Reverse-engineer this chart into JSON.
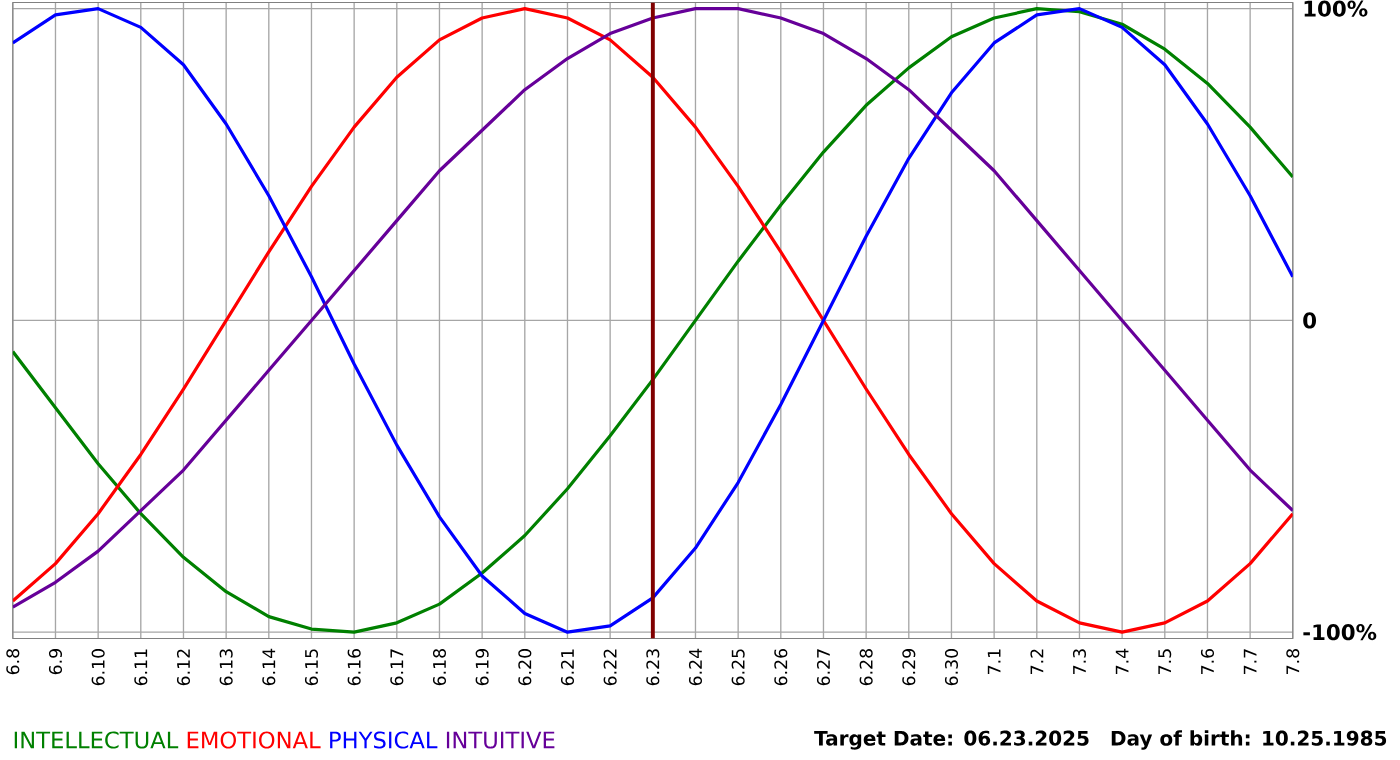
{
  "chart_data": {
    "type": "line",
    "categories": [
      "6.8",
      "6.9",
      "6.10",
      "6.11",
      "6.12",
      "6.13",
      "6.14",
      "6.15",
      "6.16",
      "6.17",
      "6.18",
      "6.19",
      "6.20",
      "6.21",
      "6.22",
      "6.23",
      "6.24",
      "6.25",
      "6.26",
      "6.27",
      "6.28",
      "6.29",
      "6.30",
      "7.1",
      "7.2",
      "7.3",
      "7.4",
      "7.5",
      "7.6",
      "7.7",
      "7.8"
    ],
    "series": [
      {
        "name": "INTELLECTUAL",
        "color": "#008000",
        "values": [
          -10,
          -28,
          -46,
          -62,
          -76,
          -87,
          -95,
          -99,
          -100,
          -97,
          -91,
          -81,
          -69,
          -54,
          -37,
          -19,
          0,
          19,
          37,
          54,
          69,
          81,
          91,
          97,
          100,
          99,
          95,
          87,
          76,
          62,
          46
        ]
      },
      {
        "name": "EMOTIONAL",
        "color": "#ff0000",
        "values": [
          -90,
          -78,
          -62,
          -43,
          -22,
          0,
          22,
          43,
          62,
          78,
          90,
          97,
          100,
          97,
          90,
          78,
          62,
          43,
          22,
          0,
          -22,
          -43,
          -62,
          -78,
          -90,
          -97,
          -100,
          -97,
          -90,
          -78,
          -62
        ]
      },
      {
        "name": "PHYSICAL",
        "color": "#0000ff",
        "values": [
          89,
          98,
          100,
          94,
          82,
          63,
          40,
          14,
          -14,
          -40,
          -63,
          -82,
          -94,
          -100,
          -98,
          -89,
          -73,
          -52,
          -27,
          0,
          27,
          52,
          73,
          89,
          98,
          100,
          94,
          82,
          63,
          40,
          14
        ]
      },
      {
        "name": "INTUITIVE",
        "color": "#660099",
        "values": [
          -92,
          -84,
          -74,
          -61,
          -48,
          -32,
          -16,
          0,
          16,
          32,
          48,
          61,
          74,
          84,
          92,
          97,
          100,
          100,
          97,
          92,
          84,
          74,
          61,
          48,
          32,
          16,
          0,
          -16,
          -32,
          -48,
          -61
        ]
      }
    ],
    "ylim": [
      -102,
      102
    ],
    "yticks": [
      {
        "value": -100,
        "label": "-100%"
      },
      0,
      {
        "value": 100,
        "label": "100%"
      }
    ],
    "ref_lines": [
      {
        "axis": "x",
        "value": "6.23",
        "color": "#800000"
      }
    ],
    "annotations": [
      "Target Date: 06.23.2025",
      "Day of birth: 10.25.1985"
    ],
    "grid": true,
    "legend": "bottom"
  }
}
